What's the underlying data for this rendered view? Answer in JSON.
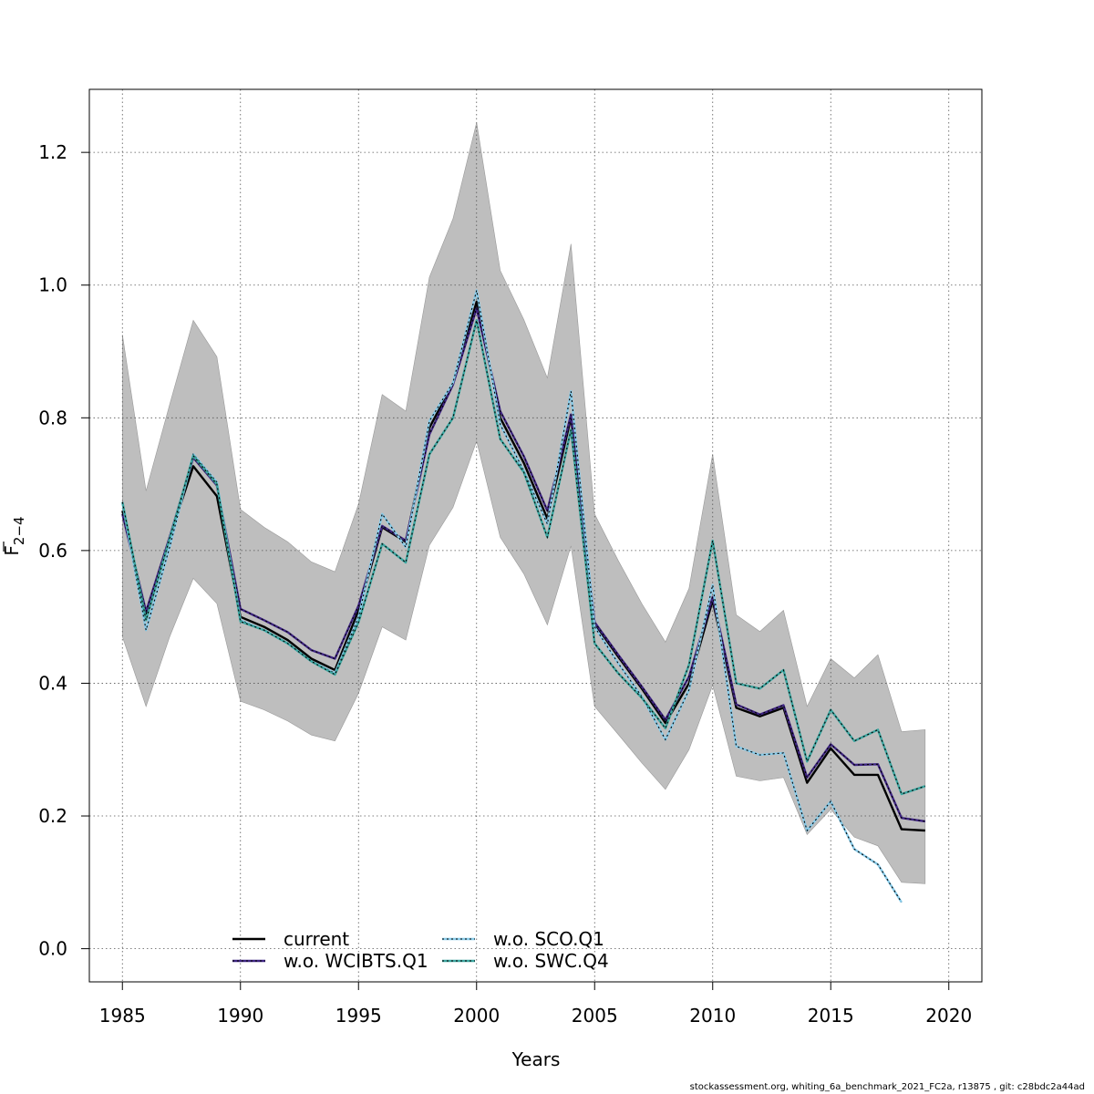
{
  "chart_data": {
    "type": "line",
    "xlabel": "Years",
    "ylabel": "F",
    "ylabel_sub": "2−4",
    "xlim": [
      1983.6,
      2021.4
    ],
    "ylim": [
      -0.05,
      1.295
    ],
    "xticks": [
      1985,
      1990,
      1995,
      2000,
      2005,
      2010,
      2015,
      2020
    ],
    "yticks": [
      "0.0",
      "0.2",
      "0.4",
      "0.6",
      "0.8",
      "1.0",
      "1.2"
    ],
    "grid": true,
    "legend_position": "bottom-left",
    "x": [
      1985,
      1986,
      1987,
      1988,
      1989,
      1990,
      1991,
      1992,
      1993,
      1994,
      1995,
      1996,
      1997,
      1998,
      1999,
      2000,
      2001,
      2002,
      2003,
      2004,
      2005,
      2006,
      2007,
      2008,
      2009,
      2010,
      2011,
      2012,
      2013,
      2014,
      2015,
      2016,
      2017,
      2018,
      2019
    ],
    "band": {
      "color": "#bebebe",
      "upper": [
        0.925,
        0.69,
        0.82,
        0.947,
        0.892,
        0.662,
        0.635,
        0.613,
        0.583,
        0.568,
        0.67,
        0.835,
        0.81,
        1.012,
        1.1,
        1.245,
        1.022,
        0.948,
        0.86,
        1.062,
        0.655,
        0.585,
        0.52,
        0.462,
        0.543,
        0.745,
        0.503,
        0.478,
        0.51,
        0.365,
        0.437,
        0.408,
        0.443,
        0.327,
        0.33
      ],
      "lower": [
        0.47,
        0.365,
        0.47,
        0.558,
        0.52,
        0.373,
        0.36,
        0.343,
        0.322,
        0.313,
        0.385,
        0.485,
        0.465,
        0.608,
        0.665,
        0.765,
        0.62,
        0.565,
        0.488,
        0.607,
        0.365,
        0.323,
        0.28,
        0.24,
        0.3,
        0.397,
        0.26,
        0.253,
        0.258,
        0.172,
        0.21,
        0.168,
        0.155,
        0.1,
        0.098
      ]
    },
    "series": [
      {
        "name": "current",
        "color": "#000000",
        "dashed": false,
        "values": [
          0.66,
          0.505,
          0.62,
          0.727,
          0.682,
          0.5,
          0.485,
          0.465,
          0.437,
          0.42,
          0.51,
          0.635,
          0.613,
          0.785,
          0.852,
          0.975,
          0.8,
          0.732,
          0.648,
          0.8,
          0.49,
          0.44,
          0.392,
          0.34,
          0.4,
          0.525,
          0.363,
          0.35,
          0.363,
          0.25,
          0.302,
          0.262,
          0.262,
          0.18,
          0.178
        ]
      },
      {
        "name": "w.o. WCIBTS.Q1",
        "color": "#3f2583",
        "dashed": true,
        "values": [
          0.655,
          0.508,
          0.62,
          0.74,
          0.698,
          0.512,
          0.495,
          0.477,
          0.45,
          0.437,
          0.517,
          0.637,
          0.615,
          0.775,
          0.85,
          0.965,
          0.81,
          0.742,
          0.66,
          0.805,
          0.492,
          0.443,
          0.395,
          0.345,
          0.41,
          0.53,
          0.368,
          0.353,
          0.367,
          0.258,
          0.308,
          0.277,
          0.278,
          0.197,
          0.192
        ]
      },
      {
        "name": "w.o. SCO.Q1",
        "color": "#88cbe9",
        "dashed": true,
        "values": [
          0.672,
          0.48,
          0.605,
          0.745,
          0.703,
          0.495,
          0.48,
          0.46,
          0.433,
          0.415,
          0.5,
          0.655,
          0.605,
          0.795,
          0.853,
          0.992,
          0.79,
          0.72,
          0.64,
          0.84,
          0.485,
          0.43,
          0.38,
          0.315,
          0.39,
          0.548,
          0.305,
          0.292,
          0.295,
          0.178,
          0.222,
          0.15,
          0.127,
          0.07,
          null
        ]
      },
      {
        "name": "w.o. SWC.Q4",
        "color": "#3ba6a0",
        "dashed": true,
        "values": [
          0.673,
          0.495,
          0.618,
          0.743,
          0.7,
          0.493,
          0.48,
          0.46,
          0.433,
          0.413,
          0.492,
          0.61,
          0.582,
          0.745,
          0.8,
          0.947,
          0.768,
          0.718,
          0.62,
          0.782,
          0.46,
          0.415,
          0.378,
          0.332,
          0.428,
          0.615,
          0.4,
          0.392,
          0.42,
          0.282,
          0.36,
          0.313,
          0.33,
          0.233,
          0.245
        ]
      }
    ]
  },
  "footer": "stockassessment.org, whiting_6a_benchmark_2021_FC2a, r13875 , git: c28bdc2a44ad"
}
